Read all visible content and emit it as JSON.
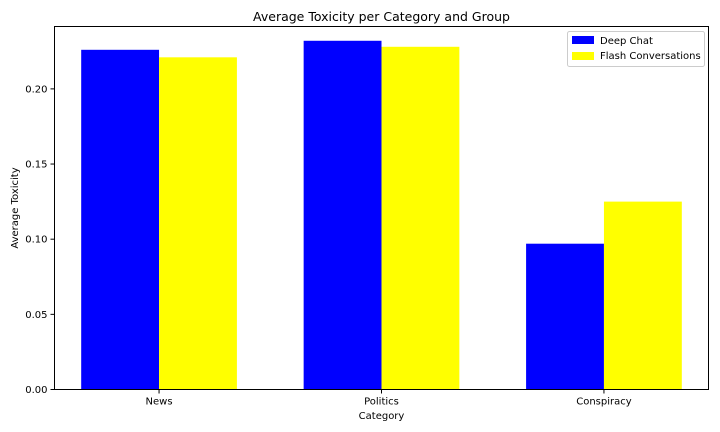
{
  "chart_data": {
    "type": "bar",
    "title": "Average Toxicity per Category and Group",
    "xlabel": "Category",
    "ylabel": "Average Toxicity",
    "categories": [
      "News",
      "Politics",
      "Conspiracy"
    ],
    "series": [
      {
        "name": "Deep Chat",
        "values": [
          0.226,
          0.232,
          0.097
        ],
        "color": "#0000ff"
      },
      {
        "name": "Flash Conversations",
        "values": [
          0.221,
          0.228,
          0.125
        ],
        "color": "#ffff00"
      }
    ],
    "ylim": [
      0,
      0.2415
    ],
    "yticks": [
      0.0,
      0.05,
      0.1,
      0.15,
      0.2
    ],
    "ytick_labels": [
      "0.00",
      "0.05",
      "0.10",
      "0.15",
      "0.20"
    ],
    "grid": false,
    "legend_position": "top-right"
  }
}
